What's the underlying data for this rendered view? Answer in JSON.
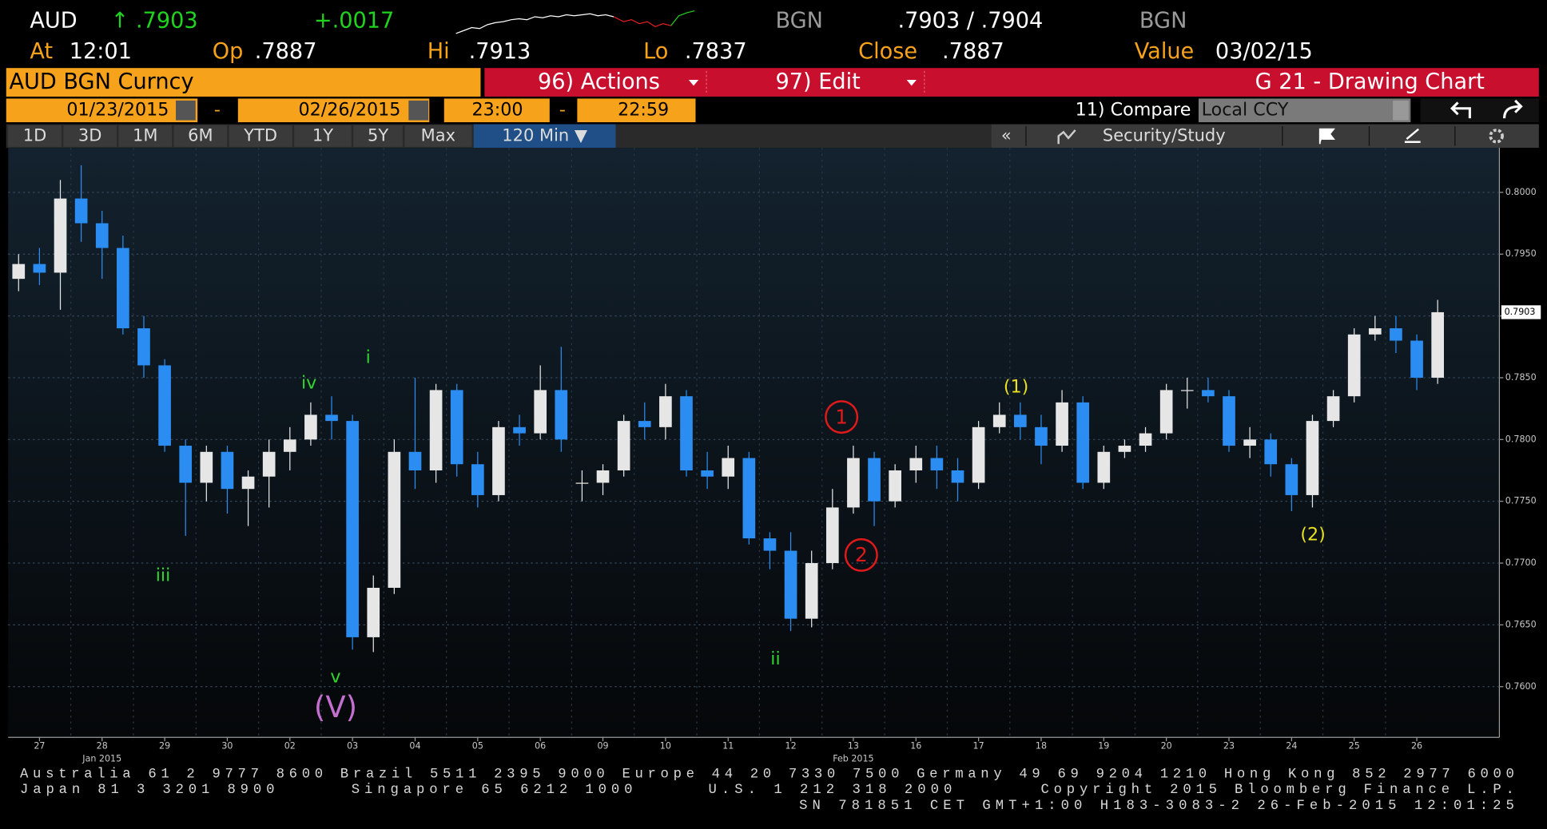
{
  "header": {
    "security": "AUD",
    "last": "↑ .7903",
    "change": "+.0017",
    "source1": "BGN",
    "bid_ask": ".7903 / .7904",
    "source2": "BGN",
    "at_label": "At",
    "at_value": "12:01",
    "op_label": "Op",
    "op_value": ".7887",
    "hi_label": "Hi",
    "hi_value": ".7913",
    "lo_label": "Lo",
    "lo_value": ".7837",
    "close_label": "Close",
    "close_value": ".7887",
    "value_label": "Value",
    "value_date": "03/02/15"
  },
  "toolbar": {
    "ticker": "AUD BGN Curncy",
    "actions": "96) Actions",
    "edit": "97) Edit",
    "chart_name": "G 21 - Drawing Chart",
    "start_date": "01/23/2015",
    "end_date": "02/26/2015",
    "dash1": "-",
    "dash2": "-",
    "start_time": "23:00",
    "end_time": "22:59",
    "compare": "11) Compare",
    "currency": "Local CCY",
    "tabs": [
      "1D",
      "3D",
      "1M",
      "6M",
      "YTD",
      "1Y",
      "5Y",
      "Max"
    ],
    "active_tab": "120 Min ▼",
    "collapse": "«",
    "study": "Security/Study"
  },
  "chart_data": {
    "type": "candlestick",
    "up_color": "#e6e6e6",
    "down_color": "#2b8df2",
    "grid": true,
    "days": [
      "27",
      "28",
      "29",
      "30",
      "02",
      "03",
      "04",
      "05",
      "06",
      "09",
      "10",
      "11",
      "12",
      "13",
      "16",
      "17",
      "18",
      "19",
      "20",
      "23",
      "24",
      "25",
      "26"
    ],
    "months": [
      {
        "day": 1,
        "label": "Jan 2015"
      },
      {
        "day": 13,
        "label": "Feb 2015"
      }
    ],
    "open": [
      0.793,
      0.7942,
      0.7935,
      0.7995,
      0.7975,
      0.7955,
      0.789,
      0.786,
      0.7795,
      0.7765,
      0.779,
      0.776,
      0.777,
      0.779,
      0.78,
      0.782,
      0.7815,
      0.764,
      0.768,
      0.779,
      0.7775,
      0.784,
      0.778,
      0.7755,
      0.781,
      0.7805,
      0.784,
      0.7765,
      0.7765,
      0.7775,
      0.7815,
      0.781,
      0.7835,
      0.7775,
      0.777,
      0.7785,
      0.772,
      0.771,
      0.7655,
      0.77,
      0.7745,
      0.7785,
      0.775,
      0.7775,
      0.7785,
      0.7775,
      0.7765,
      0.781,
      0.782,
      0.781,
      0.7795,
      0.783,
      0.7765,
      0.779,
      0.7795,
      0.7805,
      0.784,
      0.784,
      0.7835,
      0.7795,
      0.78,
      0.778,
      0.7755,
      0.7815,
      0.7835,
      0.7885,
      0.789,
      0.788,
      0.785
    ],
    "high": [
      0.795,
      0.7955,
      0.801,
      0.8022,
      0.7985,
      0.7965,
      0.79,
      0.7865,
      0.78,
      0.7795,
      0.7795,
      0.7775,
      0.78,
      0.781,
      0.783,
      0.7835,
      0.782,
      0.769,
      0.78,
      0.785,
      0.7845,
      0.7845,
      0.779,
      0.7815,
      0.782,
      0.786,
      0.7875,
      0.7775,
      0.778,
      0.782,
      0.783,
      0.7845,
      0.784,
      0.779,
      0.7795,
      0.779,
      0.7725,
      0.7725,
      0.771,
      0.776,
      0.7795,
      0.779,
      0.778,
      0.7795,
      0.7795,
      0.7785,
      0.7815,
      0.783,
      0.783,
      0.782,
      0.784,
      0.7835,
      0.7795,
      0.78,
      0.781,
      0.7845,
      0.785,
      0.785,
      0.784,
      0.781,
      0.7805,
      0.7785,
      0.782,
      0.784,
      0.789,
      0.79,
      0.79,
      0.7885,
      0.7913
    ],
    "low": [
      0.792,
      0.7925,
      0.7905,
      0.796,
      0.793,
      0.7885,
      0.785,
      0.779,
      0.7722,
      0.775,
      0.774,
      0.773,
      0.7745,
      0.7775,
      0.7795,
      0.78,
      0.763,
      0.7628,
      0.7675,
      0.776,
      0.7765,
      0.777,
      0.7745,
      0.775,
      0.7795,
      0.78,
      0.779,
      0.775,
      0.7755,
      0.777,
      0.78,
      0.78,
      0.777,
      0.776,
      0.776,
      0.7715,
      0.7695,
      0.7645,
      0.7648,
      0.7695,
      0.774,
      0.773,
      0.7745,
      0.7765,
      0.776,
      0.775,
      0.776,
      0.7805,
      0.78,
      0.778,
      0.779,
      0.776,
      0.776,
      0.7785,
      0.779,
      0.78,
      0.7825,
      0.783,
      0.779,
      0.7785,
      0.777,
      0.7742,
      0.7745,
      0.781,
      0.783,
      0.788,
      0.787,
      0.784,
      0.7845
    ],
    "close": [
      0.7942,
      0.7935,
      0.7995,
      0.7975,
      0.7955,
      0.789,
      0.786,
      0.7795,
      0.7765,
      0.779,
      0.776,
      0.777,
      0.779,
      0.78,
      0.782,
      0.7815,
      0.764,
      0.768,
      0.779,
      0.7775,
      0.784,
      0.778,
      0.7755,
      0.781,
      0.7805,
      0.784,
      0.78,
      0.7765,
      0.7775,
      0.7815,
      0.781,
      0.7835,
      0.7775,
      0.777,
      0.7785,
      0.772,
      0.771,
      0.7655,
      0.77,
      0.7745,
      0.7785,
      0.775,
      0.7775,
      0.7785,
      0.7775,
      0.7765,
      0.781,
      0.782,
      0.781,
      0.7795,
      0.783,
      0.7765,
      0.779,
      0.7795,
      0.7805,
      0.784,
      0.784,
      0.7835,
      0.7795,
      0.78,
      0.778,
      0.7755,
      0.7815,
      0.7835,
      0.7885,
      0.789,
      0.788,
      0.785,
      0.7903
    ],
    "ylim": [
      0.7559,
      0.8036
    ],
    "yticks": [
      {
        "value": 0.76,
        "label": "0.7600"
      },
      {
        "value": 0.765,
        "label": "0.7650"
      },
      {
        "value": 0.77,
        "label": "0.7700"
      },
      {
        "value": 0.775,
        "label": "0.7750"
      },
      {
        "value": 0.78,
        "label": "0.7800"
      },
      {
        "value": 0.785,
        "label": "0.7850"
      },
      {
        "value": 0.79,
        "label": "0.7900"
      },
      {
        "value": 0.795,
        "label": "0.7950"
      },
      {
        "value": 0.8,
        "label": "0.8000"
      }
    ],
    "last_price": 0.7903,
    "annotations": [
      {
        "text": "iii",
        "color": "#2fd62f",
        "circled": false
      },
      {
        "text": "iv",
        "color": "#2fd62f",
        "circled": false
      },
      {
        "text": "i",
        "color": "#2fd62f",
        "circled": false
      },
      {
        "text": "v",
        "color": "#2fd62f",
        "circled": false
      },
      {
        "text": "(V)",
        "color": "#c46fd0",
        "circled": false
      },
      {
        "text": "ii",
        "color": "#2fd62f",
        "circled": false
      },
      {
        "text": "1",
        "color": "#e01a1a",
        "circled": true
      },
      {
        "text": "2",
        "color": "#e01a1a",
        "circled": true
      },
      {
        "text": "(1)",
        "color": "#e8e020",
        "circled": false
      },
      {
        "text": "(2)",
        "color": "#e8e020",
        "circled": false
      }
    ]
  },
  "footer": {
    "line1": "Australia 61 2 9777 8600 Brazil 5511 2395 9000 Europe 44 20 7330 7500 Germany 49 69 9204 1210 Hong Kong 852 2977 6000",
    "japan": "Japan 81 3 3201 8900",
    "singapore": "Singapore 65 6212 1000",
    "us": "U.S. 1 212 318 2000",
    "copyright": "Copyright 2015 Bloomberg Finance L.P.",
    "line3": "SN 781851 CET  GMT+1:00 H183-3083-2 26-Feb-2015 12:01:25"
  }
}
